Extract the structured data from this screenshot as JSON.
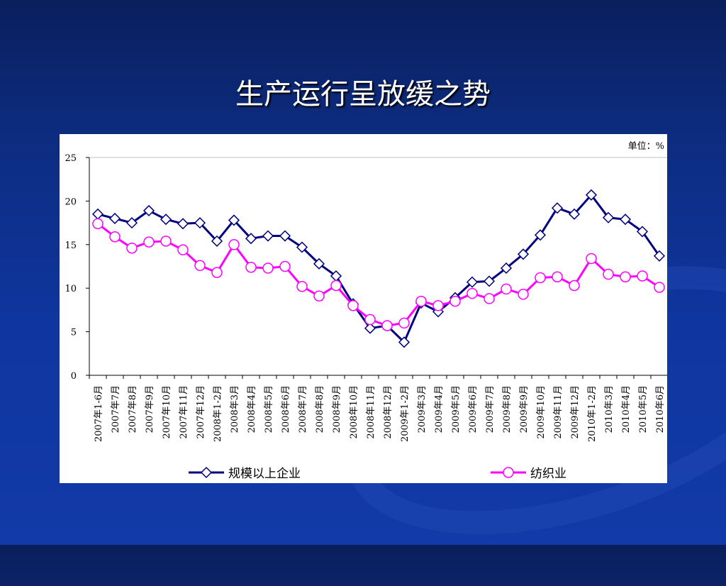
{
  "slide": {
    "title": "生产运行呈放缓之势",
    "unit_label": "单位：%"
  },
  "colors": {
    "series_1": "#00007f",
    "series_2": "#ff00ff",
    "marker_fill": "#ffffff"
  },
  "chart_data": {
    "type": "line",
    "title": "",
    "xlabel": "",
    "ylabel": "",
    "ylim": [
      0,
      25
    ],
    "y_ticks": [
      0,
      5,
      10,
      15,
      20,
      25
    ],
    "grid": false,
    "legend_position": "bottom",
    "categories": [
      "2007年1-6月",
      "2007年7月",
      "2007年8月",
      "2007年9月",
      "2007年10月",
      "2007年11月",
      "2007年12月",
      "2008年1-2月",
      "2008年3月",
      "2008年4月",
      "2008年5月",
      "2008年6月",
      "2008年7月",
      "2008年8月",
      "2008年9月",
      "2008年10月",
      "2008年11月",
      "2008年12月",
      "2009年1-2月",
      "2009年3月",
      "2009年4月",
      "2009年5月",
      "2009年6月",
      "2009年7月",
      "2009年8月",
      "2009年9月",
      "2009年10月",
      "2009年11月",
      "2009年12月",
      "2010年1-2月",
      "2010年3月",
      "2010年4月",
      "2010年5月",
      "2010年6月"
    ],
    "series": [
      {
        "name": "规模以上企业",
        "marker": "diamond",
        "values": [
          18.5,
          18.0,
          17.5,
          18.9,
          17.9,
          17.4,
          17.5,
          15.4,
          17.8,
          15.7,
          16.0,
          16.0,
          14.7,
          12.8,
          11.4,
          8.2,
          5.4,
          5.7,
          3.8,
          8.3,
          7.3,
          8.9,
          10.7,
          10.8,
          12.3,
          13.9,
          16.1,
          19.2,
          18.5,
          20.7,
          18.1,
          17.9,
          16.5,
          13.7
        ]
      },
      {
        "name": "纺织业",
        "marker": "circle",
        "values": [
          17.4,
          15.9,
          14.6,
          15.3,
          15.4,
          14.4,
          12.6,
          11.8,
          15.0,
          12.4,
          12.3,
          12.5,
          10.2,
          9.1,
          10.3,
          8.0,
          6.4,
          5.7,
          6.0,
          8.5,
          8.0,
          8.5,
          9.4,
          8.8,
          9.9,
          9.3,
          11.2,
          11.3,
          10.3,
          13.4,
          11.6,
          11.3,
          11.4,
          10.1
        ]
      }
    ]
  }
}
